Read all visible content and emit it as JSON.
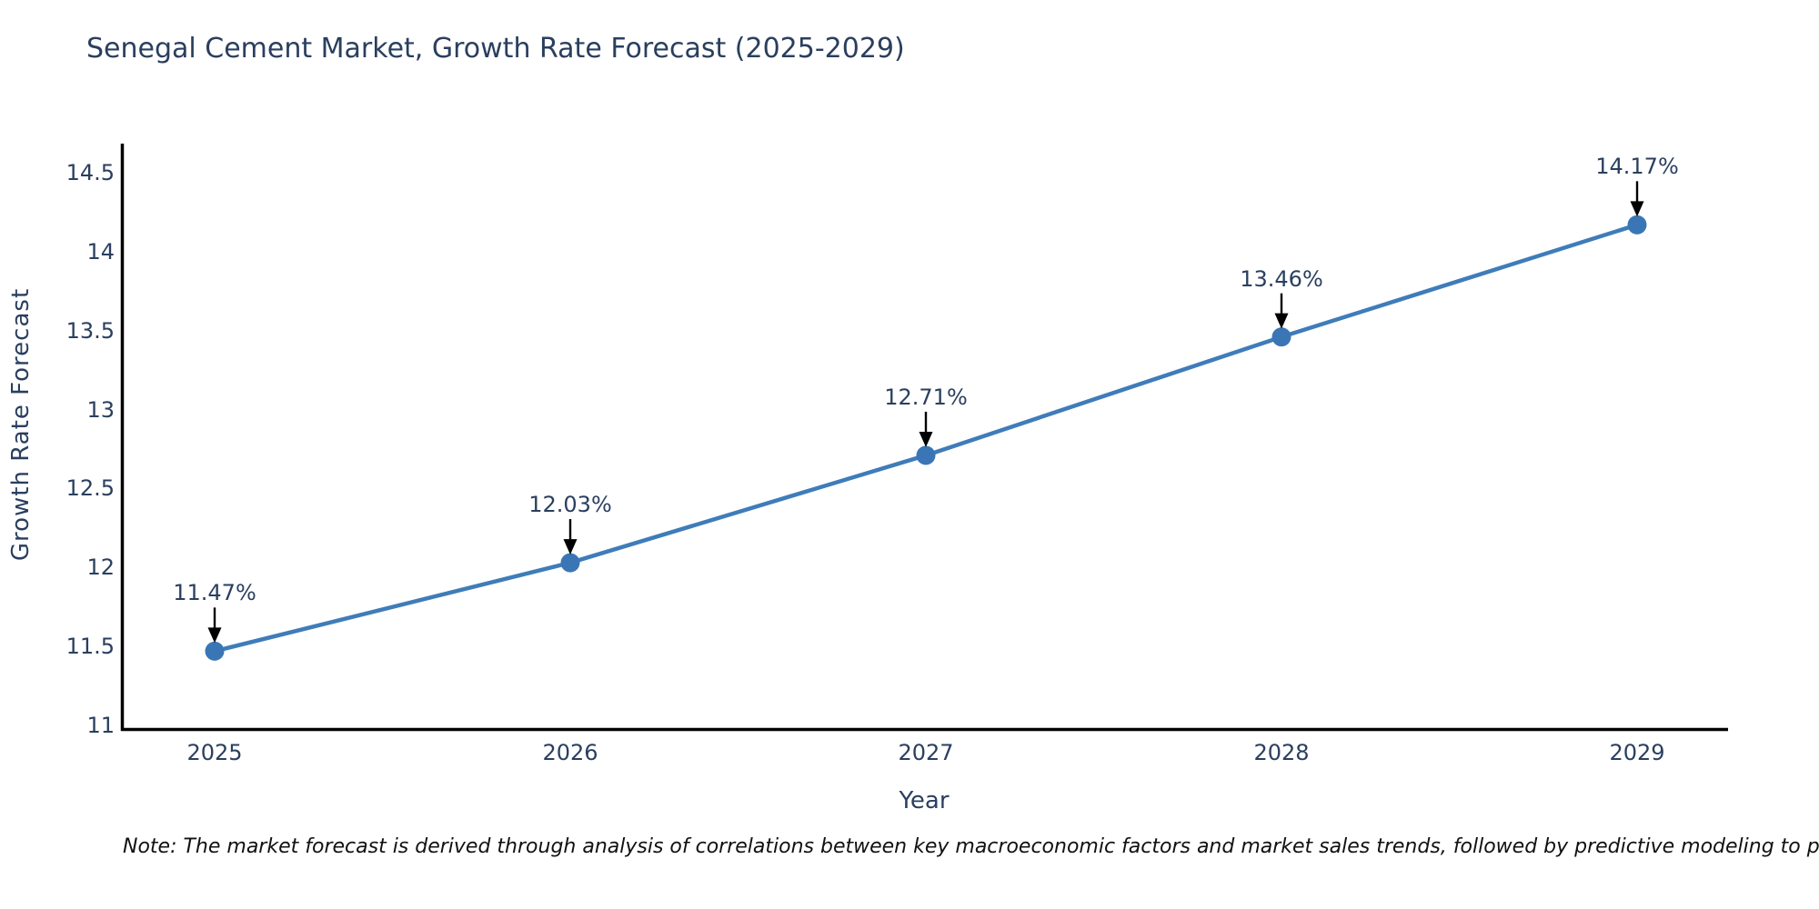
{
  "title": "Senegal Cement Market, Growth Rate Forecast (2025-2029)",
  "footnote": {
    "text": "Note: The market forecast is derived through analysis of correlations between key macroeconomic factors and market sales trends, followed by predictive modeling to project future sal"
  },
  "chart_data": {
    "type": "line",
    "title": "Senegal Cement Market, Growth Rate Forecast (2025-2029)",
    "xlabel": "Year",
    "ylabel": "Growth Rate Forecast",
    "x": [
      2025,
      2026,
      2027,
      2028,
      2029
    ],
    "y": [
      11.47,
      12.03,
      12.71,
      13.46,
      14.17
    ],
    "point_labels": [
      "11.47%",
      "12.03%",
      "12.71%",
      "13.46%",
      "14.17%"
    ],
    "xticks": [
      "2025",
      "2026",
      "2027",
      "2028",
      "2029"
    ],
    "yticks": [
      "11",
      "11.5",
      "12",
      "12.5",
      "13",
      "13.5",
      "14",
      "14.5"
    ],
    "ytick_values": [
      11,
      11.5,
      12,
      12.5,
      13,
      13.5,
      14,
      14.5
    ],
    "ylim": [
      11,
      14.5
    ],
    "grid": false,
    "legend": false,
    "annotations_have_arrows": true,
    "colors": {
      "line": "#3f7cb9",
      "marker": "#3a76b5",
      "axis": "#000000",
      "text": "#2a3f5f",
      "arrow": "#000000"
    }
  }
}
